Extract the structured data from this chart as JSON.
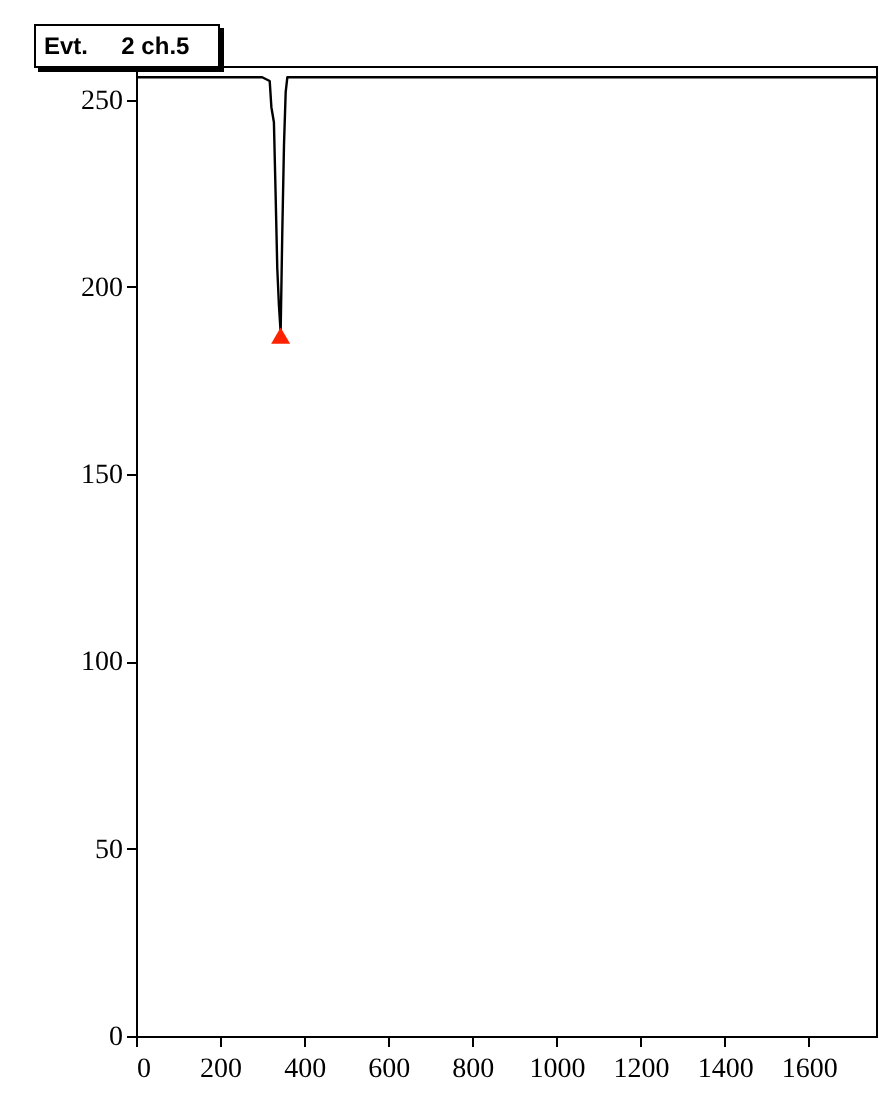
{
  "chart_data": {
    "type": "line",
    "title": "Evt.     2 ch.5",
    "xlim": [
      0,
      1760
    ],
    "ylim": [
      0,
      259
    ],
    "xticks": [
      0,
      200,
      400,
      600,
      800,
      1000,
      1200,
      1400,
      1600
    ],
    "yticks": [
      0,
      50,
      100,
      150,
      200,
      250
    ],
    "grid": false,
    "series": [
      {
        "color": "#000000",
        "marker": "none",
        "x": [
          0,
          100,
          200,
          300,
          318,
          322,
          328,
          332,
          336,
          340,
          344,
          348,
          352,
          356,
          360,
          400,
          600,
          800,
          1000,
          1200,
          1400,
          1600,
          1760
        ],
        "values": [
          256,
          256,
          256,
          256,
          255,
          248,
          244,
          225,
          205,
          195,
          188,
          215,
          238,
          252,
          256,
          256,
          256,
          256,
          256,
          256,
          256,
          256,
          256
        ]
      },
      {
        "type": "scatter",
        "color": "#ff2200",
        "marker": "triangle",
        "x": [
          344
        ],
        "values": [
          187
        ]
      }
    ]
  }
}
